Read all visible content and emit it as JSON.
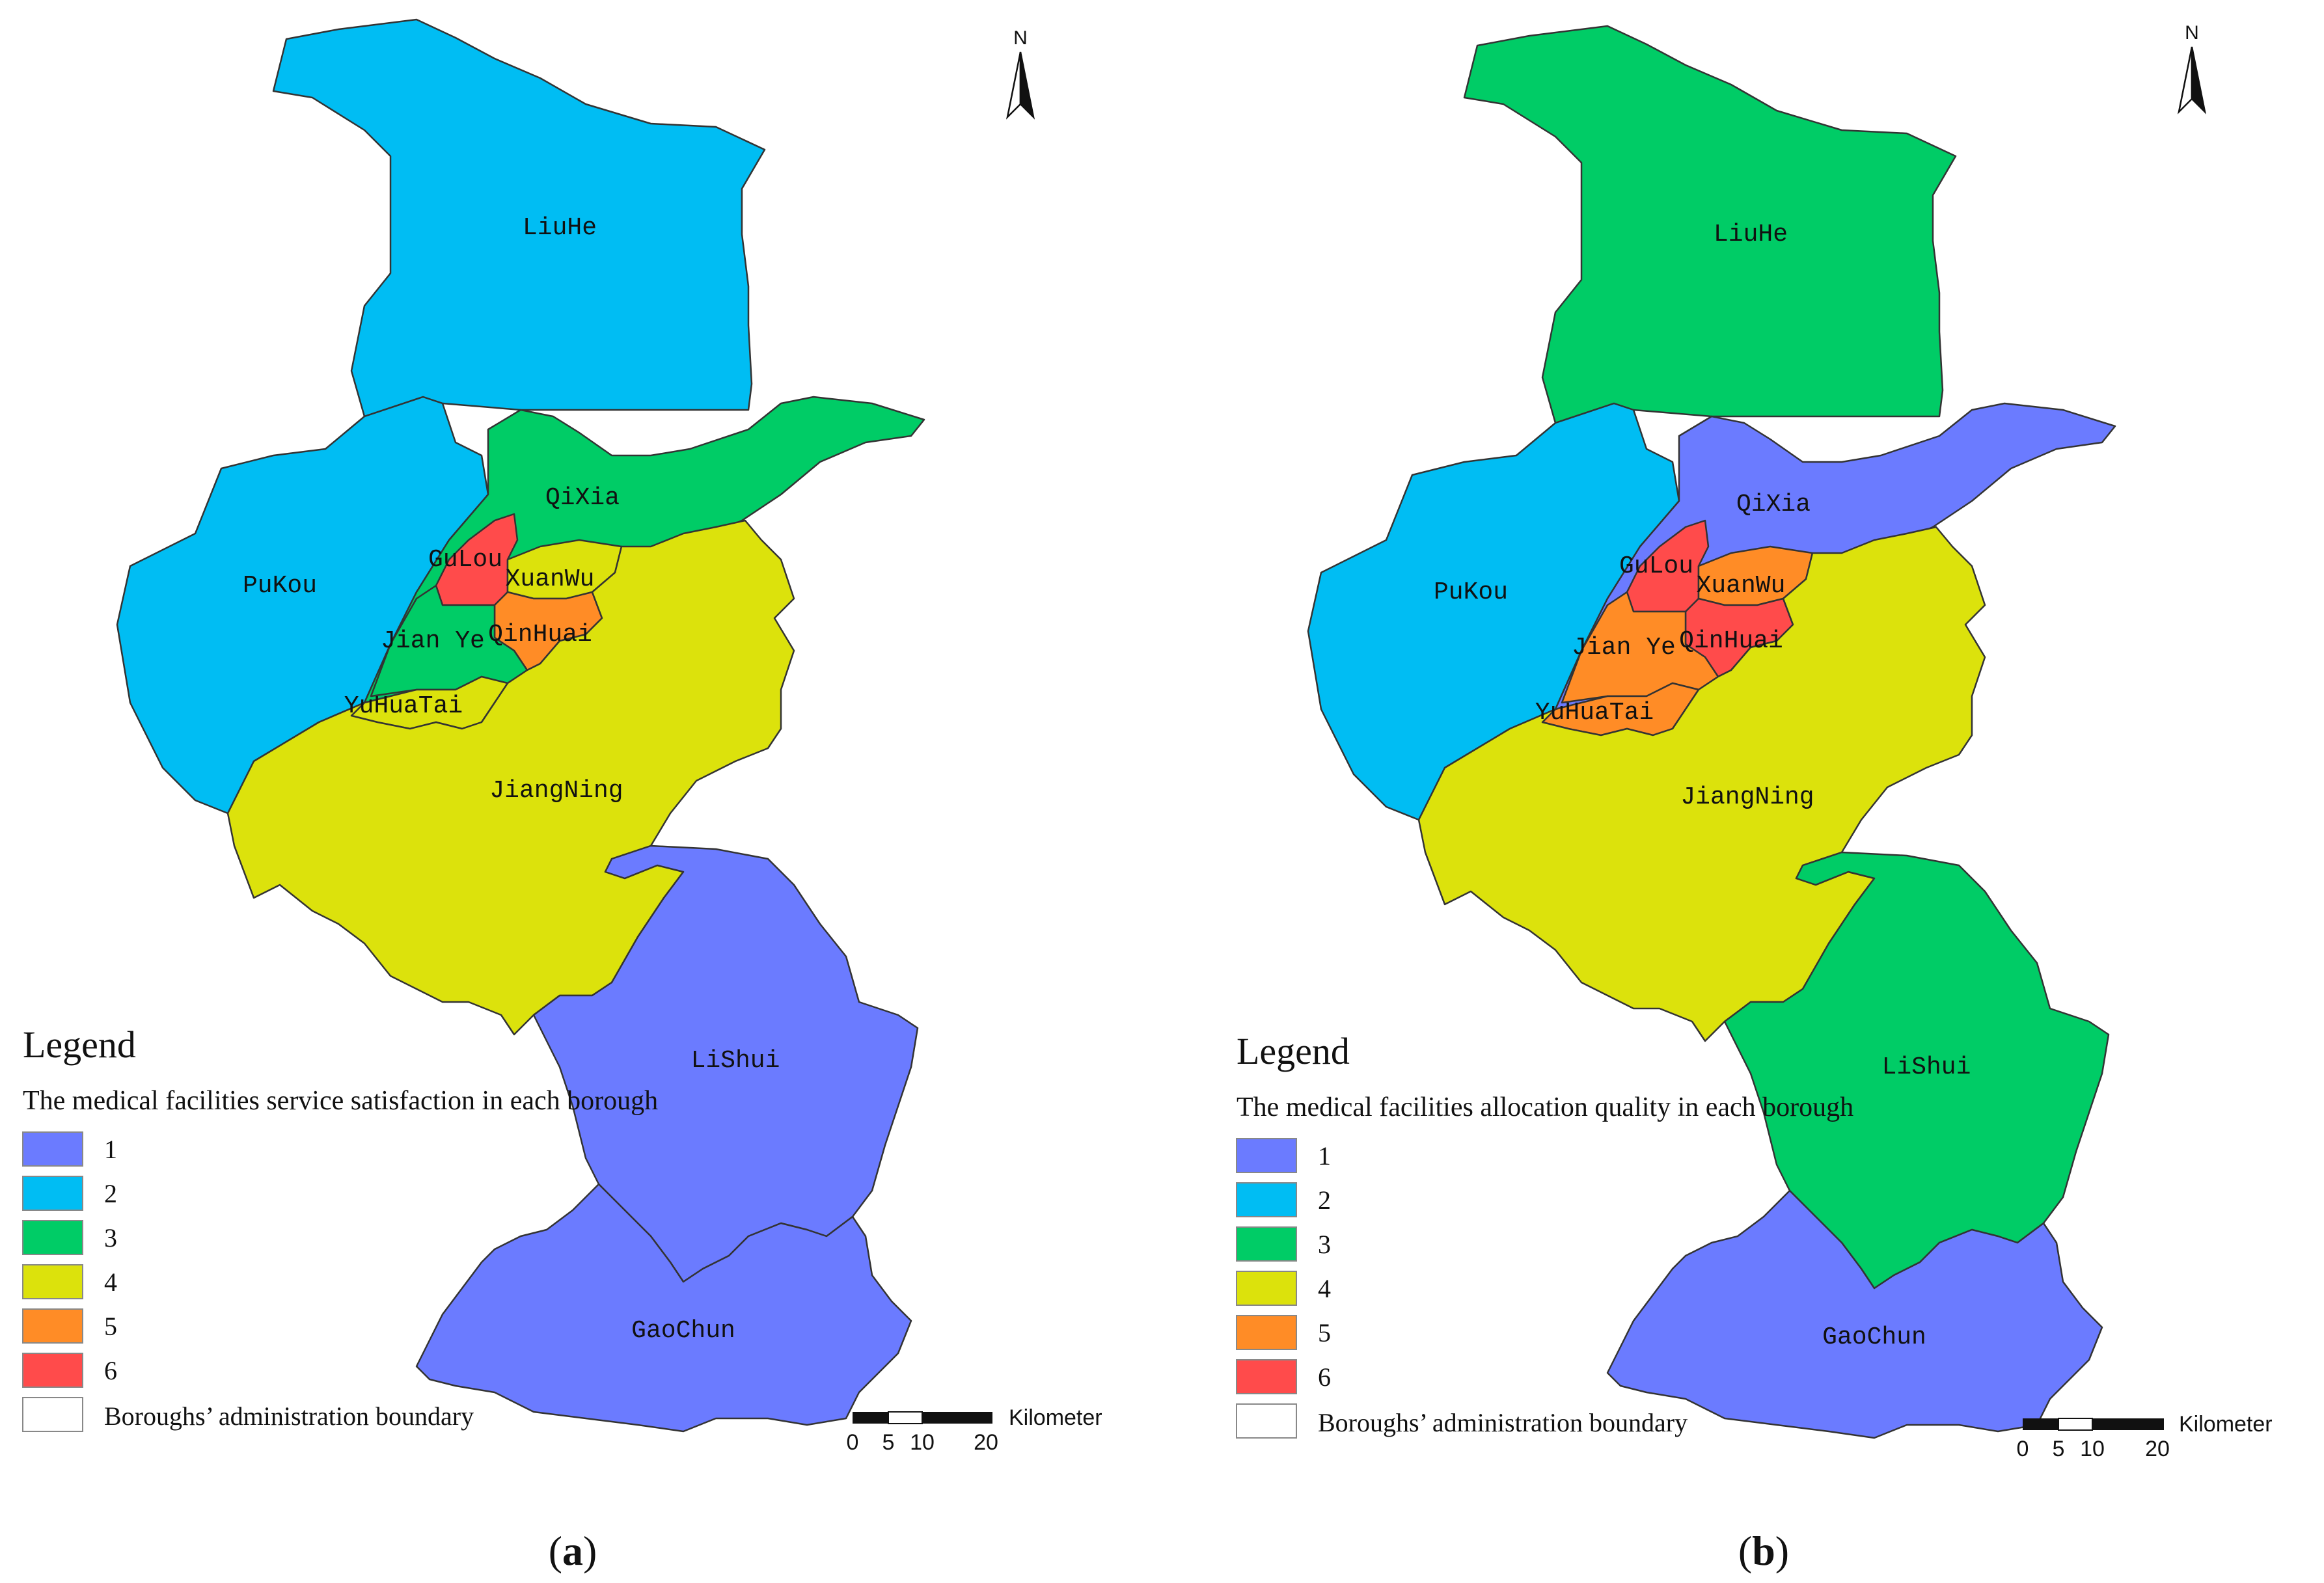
{
  "palette": {
    "1": "#6B7BFF",
    "2": "#00BDF3",
    "3": "#00CC66",
    "4": "#DCE20C",
    "5": "#FF8C26",
    "6": "#FF4B4B"
  },
  "panels": [
    {
      "caption_letter": "a",
      "north_label": "N",
      "legend": {
        "title": "Legend",
        "subtitle": "The medical facilities service satisfaction in each borough",
        "classes": [
          "1",
          "2",
          "3",
          "4",
          "5",
          "6"
        ],
        "boundary_label": "Boroughs’ administration boundary"
      },
      "scale": {
        "unit": "Kilometer",
        "ticks": [
          "0",
          "5",
          "10",
          "20"
        ]
      },
      "boroughs": {
        "LiuHe": {
          "label": "LiuHe",
          "class": 2
        },
        "PuKou": {
          "label": "PuKou",
          "class": 2
        },
        "QiXia": {
          "label": "QiXia",
          "class": 3
        },
        "GuLou": {
          "label": "GuLou",
          "class": 6
        },
        "XuanWu": {
          "label": "XuanWu",
          "class": 4
        },
        "QinHuai": {
          "label": "QinHuai",
          "class": 5
        },
        "JianYe": {
          "label": "Jian Ye",
          "class": 3
        },
        "YuHuaTai": {
          "label": "YuHuaTai",
          "class": 4
        },
        "JiangNing": {
          "label": "JiangNing",
          "class": 4
        },
        "LiShui": {
          "label": "LiShui",
          "class": 1
        },
        "GaoChun": {
          "label": "GaoChun",
          "class": 1
        }
      }
    },
    {
      "caption_letter": "b",
      "north_label": "N",
      "legend": {
        "title": "Legend",
        "subtitle": "The medical facilities allocation quality in each borough",
        "classes": [
          "1",
          "2",
          "3",
          "4",
          "5",
          "6"
        ],
        "boundary_label": "Boroughs’ administration boundary"
      },
      "scale": {
        "unit": "Kilometer",
        "ticks": [
          "0",
          "5",
          "10",
          "20"
        ]
      },
      "boroughs": {
        "LiuHe": {
          "label": "LiuHe",
          "class": 3
        },
        "PuKou": {
          "label": "PuKou",
          "class": 2
        },
        "QiXia": {
          "label": "QiXia",
          "class": 1
        },
        "GuLou": {
          "label": "GuLou",
          "class": 6
        },
        "XuanWu": {
          "label": "XuanWu",
          "class": 5
        },
        "QinHuai": {
          "label": "QinHuai",
          "class": 6
        },
        "JianYe": {
          "label": "Jian Ye",
          "class": 5
        },
        "YuHuaTai": {
          "label": "YuHuaTai",
          "class": 5
        },
        "JiangNing": {
          "label": "JiangNing",
          "class": 4
        },
        "LiShui": {
          "label": "LiShui",
          "class": 3
        },
        "GaoChun": {
          "label": "GaoChun",
          "class": 1
        }
      }
    }
  ]
}
